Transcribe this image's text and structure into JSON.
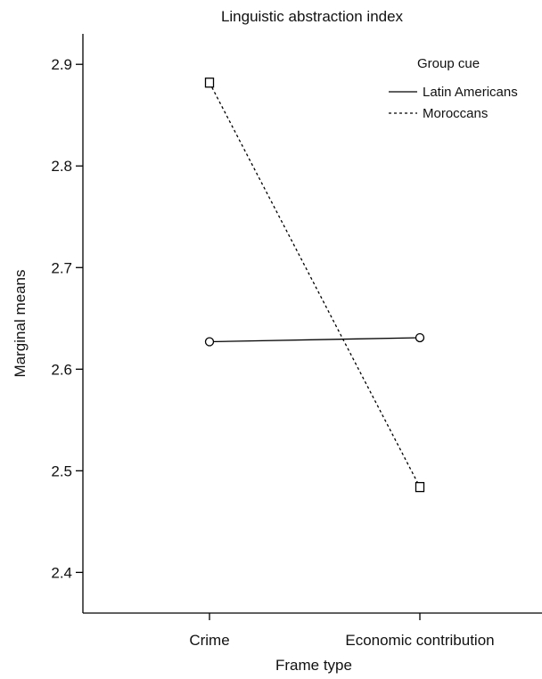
{
  "chart_data": {
    "type": "line",
    "title": "Linguistic abstraction index",
    "xlabel": "Frame type",
    "ylabel": "Marginal means",
    "categories": [
      "Crime",
      "Economic contribution"
    ],
    "ylim": [
      2.36,
      2.93
    ],
    "yticks": [
      2.4,
      2.5,
      2.6,
      2.7,
      2.8,
      2.9
    ],
    "grid": false,
    "legend": {
      "title": "Group cue",
      "placement": "top-right"
    },
    "series": [
      {
        "name": "Latin Americans",
        "values": [
          2.627,
          2.631
        ],
        "line_style": "solid",
        "marker": "circle",
        "color": "#000000"
      },
      {
        "name": "Moroccans",
        "values": [
          2.882,
          2.484
        ],
        "line_style": "dashed",
        "marker": "square",
        "color": "#000000"
      }
    ]
  }
}
